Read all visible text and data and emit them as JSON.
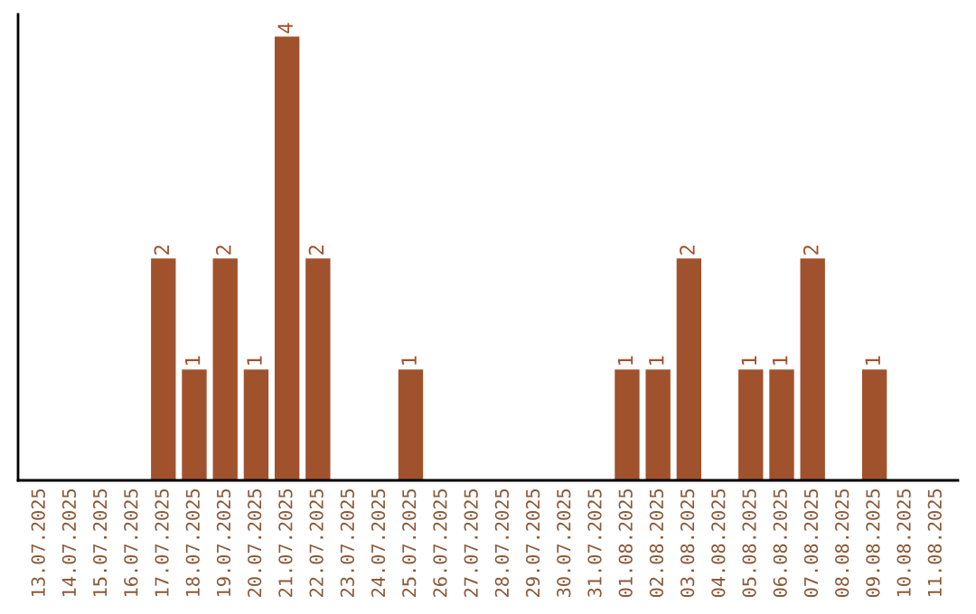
{
  "chart_data": {
    "type": "bar",
    "categories": [
      "13.07.2025",
      "14.07.2025",
      "15.07.2025",
      "16.07.2025",
      "17.07.2025",
      "18.07.2025",
      "19.07.2025",
      "20.07.2025",
      "21.07.2025",
      "22.07.2025",
      "23.07.2025",
      "24.07.2025",
      "25.07.2025",
      "26.07.2025",
      "27.07.2025",
      "28.07.2025",
      "29.07.2025",
      "30.07.2025",
      "31.07.2025",
      "01.08.2025",
      "02.08.2025",
      "03.08.2025",
      "04.08.2025",
      "05.08.2025",
      "06.08.2025",
      "07.08.2025",
      "08.08.2025",
      "09.08.2025",
      "10.08.2025",
      "11.08.2025"
    ],
    "values": [
      0,
      0,
      0,
      0,
      2,
      1,
      2,
      1,
      4,
      2,
      0,
      0,
      1,
      0,
      0,
      0,
      0,
      0,
      0,
      1,
      1,
      2,
      0,
      1,
      1,
      2,
      0,
      1,
      0,
      0
    ],
    "value_labels": [
      null,
      null,
      null,
      null,
      "2",
      "1",
      "2",
      "1",
      "4",
      "2",
      null,
      null,
      "1",
      null,
      null,
      null,
      null,
      null,
      null,
      "1",
      "1",
      "2",
      null,
      "1",
      "1",
      "2",
      null,
      "1",
      null,
      null
    ],
    "color": "#a0522d",
    "tick_labels": "x",
    "grid": false,
    "legend": false
  }
}
